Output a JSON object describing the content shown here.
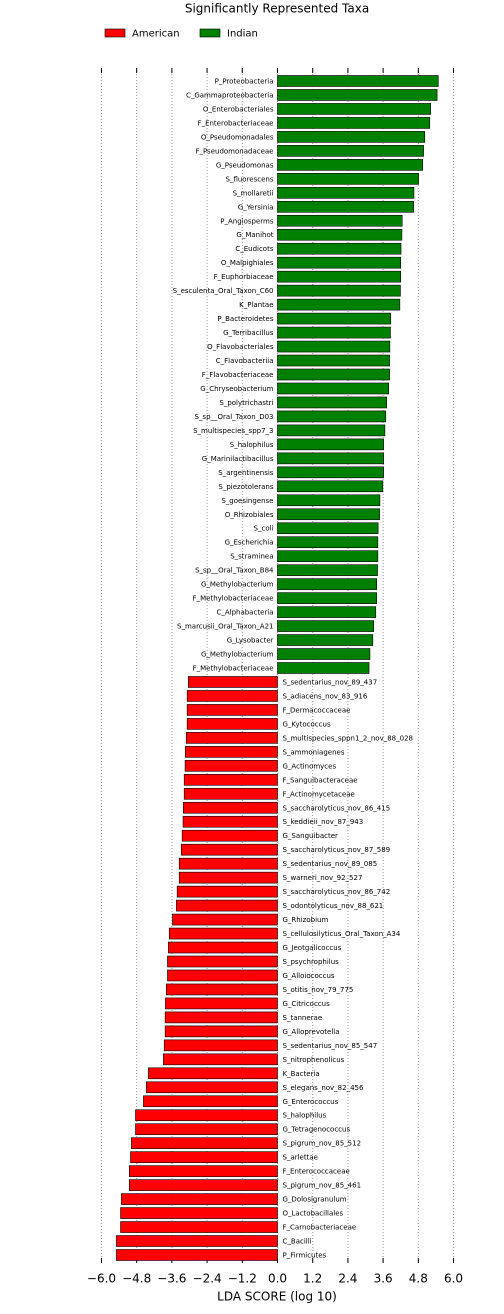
{
  "chart_data": {
    "type": "barh",
    "title": "Significantly Represented Taxa",
    "xlabel": "LDA SCORE (log 10)",
    "legend": "top",
    "grid": true,
    "xlim": [
      -6.2,
      6.2
    ],
    "xticks": [
      {
        "value": -6.0,
        "label": "−6.0"
      },
      {
        "value": -4.8,
        "label": "−4.8"
      },
      {
        "value": -3.6,
        "label": "−3.6"
      },
      {
        "value": -2.4,
        "label": "−2.4"
      },
      {
        "value": -1.2,
        "label": "−1.2"
      },
      {
        "value": 0,
        "label": "0.0"
      },
      1.2,
      2.4,
      3.6,
      4.8,
      {
        "value": 6.0,
        "label": "6.0"
      }
    ],
    "categories": [
      "P_Proteobacteria",
      "C_Gammaproteobacteria",
      "O_Enterobacteriales",
      "F_Enterobacteriaceae",
      "O_Pseudomonadales",
      "F_Pseudomonadaceae",
      "G_Pseudomonas",
      "S_fluorescens",
      "S_mollaretii",
      "G_Yersinia",
      "P_Angiosperms",
      "G_Manihot",
      "C_Eudicots",
      "O_Malpighiales",
      "F_Euphorbiaceae",
      "S_esculenta_Oral_Taxon_C60",
      "K_Plantae",
      "P_Bacteroidetes",
      "G_Terribacillus",
      "O_Flavobacteriales",
      "C_Flavobacteriia",
      "F_Flavobacteriaceae",
      "G_Chryseobacterium",
      "S_polytrichastri",
      "S_sp__Oral_Taxon_D03",
      "S_multispecies_spp7_3",
      "S_halophilus",
      "G_Marinilactibacillus",
      "S_argentinensis",
      "S_piezotolerans",
      "S_goesingense",
      "O_Rhizobiales",
      "S_coli",
      "G_Escherichia",
      "S_straminea",
      "S_sp__Oral_Taxon_B84",
      "G_Methylobacterium",
      "F_Methylobacteriaceae",
      "C_Alphabacteria",
      "S_marcusii_Oral_Taxon_A21",
      "G_Lysobacter",
      "G_Methylobacterium",
      "F_Methylobacteriaceae",
      "S_sedentarius_nov_89_437",
      "S_adiacens_nov_83_916",
      "F_Dermacoccaceae",
      "G_Kytococcus",
      "S_multispecies_sppn1_2_nov_88_028",
      "S_ammoniagenes",
      "G_Actinomyces",
      "F_Sanguibacteraceae",
      "F_Actinomycetaceae",
      "S_saccharolyticus_nov_86_415",
      "S_keddieii_nov_87_943",
      "G_Sanguibacter",
      "S_saccharolyticus_nov_87_589",
      "S_sedentarius_nov_89_085",
      "S_warneri_nov_92_527",
      "S_saccharolyticus_nov_86_742",
      "S_odontolyticus_nov_88_621",
      "G_Rhizobium",
      "S_cellulosilyticus_Oral_Taxon_A34",
      "G_Jeotgalicoccus",
      "S_psychrophilus",
      "G_Alloiococcus",
      "S_otitis_nov_79_775",
      "G_Citricoccus",
      "S_tannerae",
      "G_Alloprevotella",
      "S_sedentarius_nov_85_547",
      "S_nitrophenolicus",
      "K_Bacteria",
      "S_elegans_nov_82_456",
      "G_Enterococcus",
      "S_halophilus",
      "G_Tetragenococcus",
      "S_pigrum_nov_85_512",
      "S_arlettae",
      "F_Enterococcaceae",
      "S_pigrum_nov_85_461",
      "G_Dolosigranulum",
      "O_Lactobacillales",
      "F_Carnobacteriaceae",
      "C_Bacilli",
      "P_Firmicutes"
    ],
    "series": [
      {
        "name": "American",
        "color": "#ff0000",
        "values": [
          null,
          null,
          null,
          null,
          null,
          null,
          null,
          null,
          null,
          null,
          null,
          null,
          null,
          null,
          null,
          null,
          null,
          null,
          null,
          null,
          null,
          null,
          null,
          null,
          null,
          null,
          null,
          null,
          null,
          null,
          null,
          null,
          null,
          null,
          null,
          null,
          null,
          null,
          null,
          null,
          null,
          null,
          null,
          -3.04,
          -3.08,
          -3.08,
          -3.08,
          -3.11,
          -3.14,
          -3.15,
          -3.18,
          -3.18,
          -3.21,
          -3.22,
          -3.25,
          -3.28,
          -3.35,
          -3.35,
          -3.42,
          -3.45,
          -3.58,
          -3.69,
          -3.72,
          -3.75,
          -3.75,
          -3.79,
          -3.82,
          -3.83,
          -3.83,
          -3.86,
          -3.89,
          -4.4,
          -4.47,
          -4.57,
          -4.84,
          -4.84,
          -4.98,
          -5.01,
          -5.05,
          -5.05,
          -5.32,
          -5.35,
          -5.35,
          -5.49,
          -5.49
        ]
      },
      {
        "name": "Indian",
        "color": "#008000",
        "values": [
          5.48,
          5.44,
          5.22,
          5.19,
          5.02,
          4.98,
          4.95,
          4.81,
          4.65,
          4.64,
          4.25,
          4.24,
          4.21,
          4.2,
          4.2,
          4.19,
          4.17,
          3.86,
          3.85,
          3.83,
          3.82,
          3.82,
          3.79,
          3.72,
          3.69,
          3.66,
          3.62,
          3.62,
          3.62,
          3.59,
          3.49,
          3.48,
          3.43,
          3.42,
          3.42,
          3.41,
          3.38,
          3.38,
          3.35,
          3.28,
          3.25,
          3.15,
          3.12,
          null,
          null,
          null,
          null,
          null,
          null,
          null,
          null,
          null,
          null,
          null,
          null,
          null,
          null,
          null,
          null,
          null,
          null,
          null,
          null,
          null,
          null,
          null,
          null,
          null,
          null,
          null,
          null,
          null,
          null,
          null,
          null,
          null,
          null,
          null,
          null,
          null,
          null,
          null,
          null,
          null,
          null
        ]
      }
    ]
  }
}
